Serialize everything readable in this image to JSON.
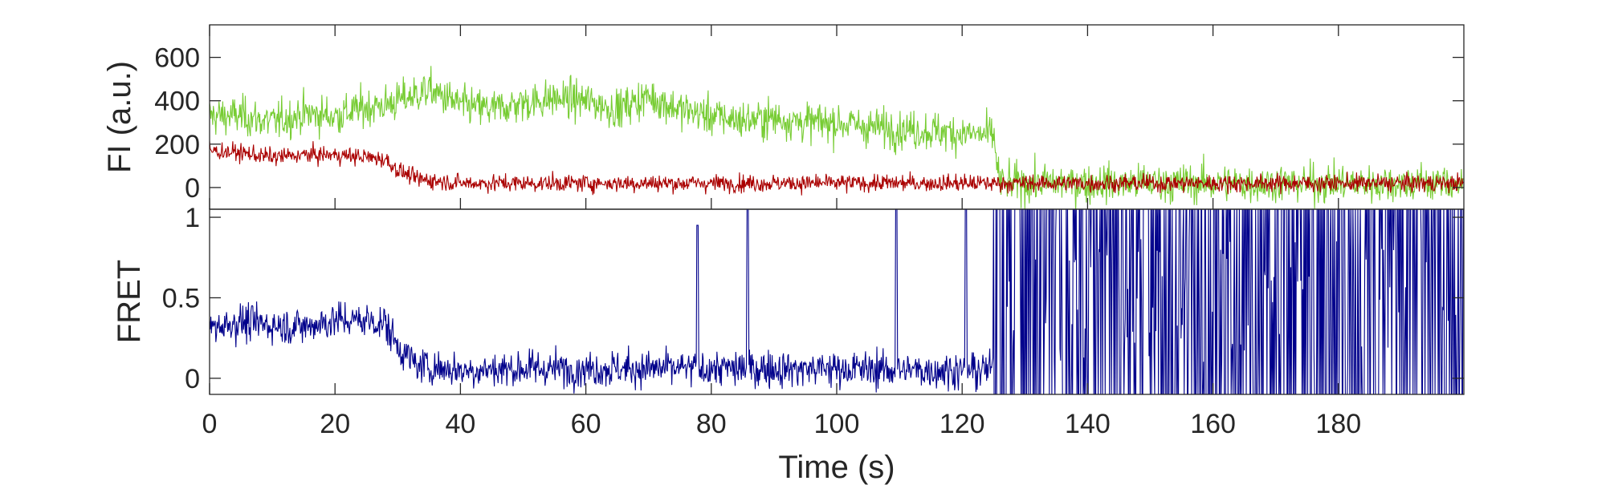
{
  "chart_data": [
    {
      "type": "line",
      "ylabel": "FI (a.u.)",
      "xlim": [
        0,
        200
      ],
      "ylim": [
        -100,
        750
      ],
      "yticks": [
        0,
        200,
        400,
        600
      ],
      "grid": false,
      "colors": {
        "donor": "#77cc33",
        "acceptor": "#aa0000"
      },
      "series": [
        {
          "color": "#77cc33",
          "x": [
            0,
            5,
            10,
            15,
            20,
            25,
            28,
            32,
            35,
            40,
            45,
            50,
            55,
            60,
            65,
            70,
            75,
            80,
            85,
            90,
            95,
            100,
            105,
            110,
            115,
            120,
            125,
            126,
            130,
            140,
            150,
            160,
            170,
            180,
            190,
            200
          ],
          "values": [
            330,
            330,
            300,
            340,
            330,
            370,
            380,
            420,
            450,
            380,
            360,
            390,
            410,
            400,
            360,
            420,
            360,
            330,
            310,
            320,
            300,
            300,
            280,
            270,
            260,
            250,
            240,
            20,
            20,
            20,
            20,
            20,
            20,
            20,
            20,
            20
          ],
          "noise": 90
        },
        {
          "color": "#aa0000",
          "x": [
            0,
            5,
            10,
            15,
            20,
            25,
            28,
            30,
            33,
            40,
            50,
            60,
            70,
            80,
            90,
            100,
            110,
            120,
            125,
            130,
            140,
            150,
            160,
            170,
            180,
            190,
            200
          ],
          "values": [
            170,
            160,
            140,
            150,
            150,
            140,
            130,
            80,
            40,
            20,
            20,
            20,
            20,
            20,
            20,
            20,
            20,
            20,
            20,
            20,
            20,
            20,
            20,
            20,
            20,
            20,
            20
          ],
          "noise": 40
        }
      ]
    },
    {
      "type": "line",
      "xlabel": "Time (s)",
      "ylabel": "FRET",
      "xlim": [
        0,
        200
      ],
      "ylim": [
        -0.1,
        1.05
      ],
      "xticks": [
        0,
        20,
        40,
        60,
        80,
        100,
        120,
        140,
        160,
        180
      ],
      "yticks": [
        0,
        0.5,
        1
      ],
      "ytick_labels": [
        "0",
        "0.5",
        "1"
      ],
      "grid": false,
      "series": [
        {
          "color": "#00008b",
          "x": [
            0,
            5,
            10,
            15,
            20,
            25,
            28,
            30,
            33,
            40,
            50,
            60,
            70,
            80,
            90,
            100,
            110,
            120,
            125
          ],
          "values": [
            0.32,
            0.35,
            0.33,
            0.32,
            0.36,
            0.36,
            0.34,
            0.2,
            0.08,
            0.05,
            0.06,
            0.06,
            0.06,
            0.06,
            0.06,
            0.06,
            0.05,
            0.05,
            0.05
          ],
          "noise": 0.08,
          "spikes": [
            {
              "x": 77.8,
              "value": 0.95
            },
            {
              "x": 85.8,
              "value": 1.05
            },
            {
              "x": 109.5,
              "value": 1.05
            },
            {
              "x": 120.6,
              "value": 1.05
            }
          ],
          "switching_after": 125
        }
      ]
    }
  ]
}
